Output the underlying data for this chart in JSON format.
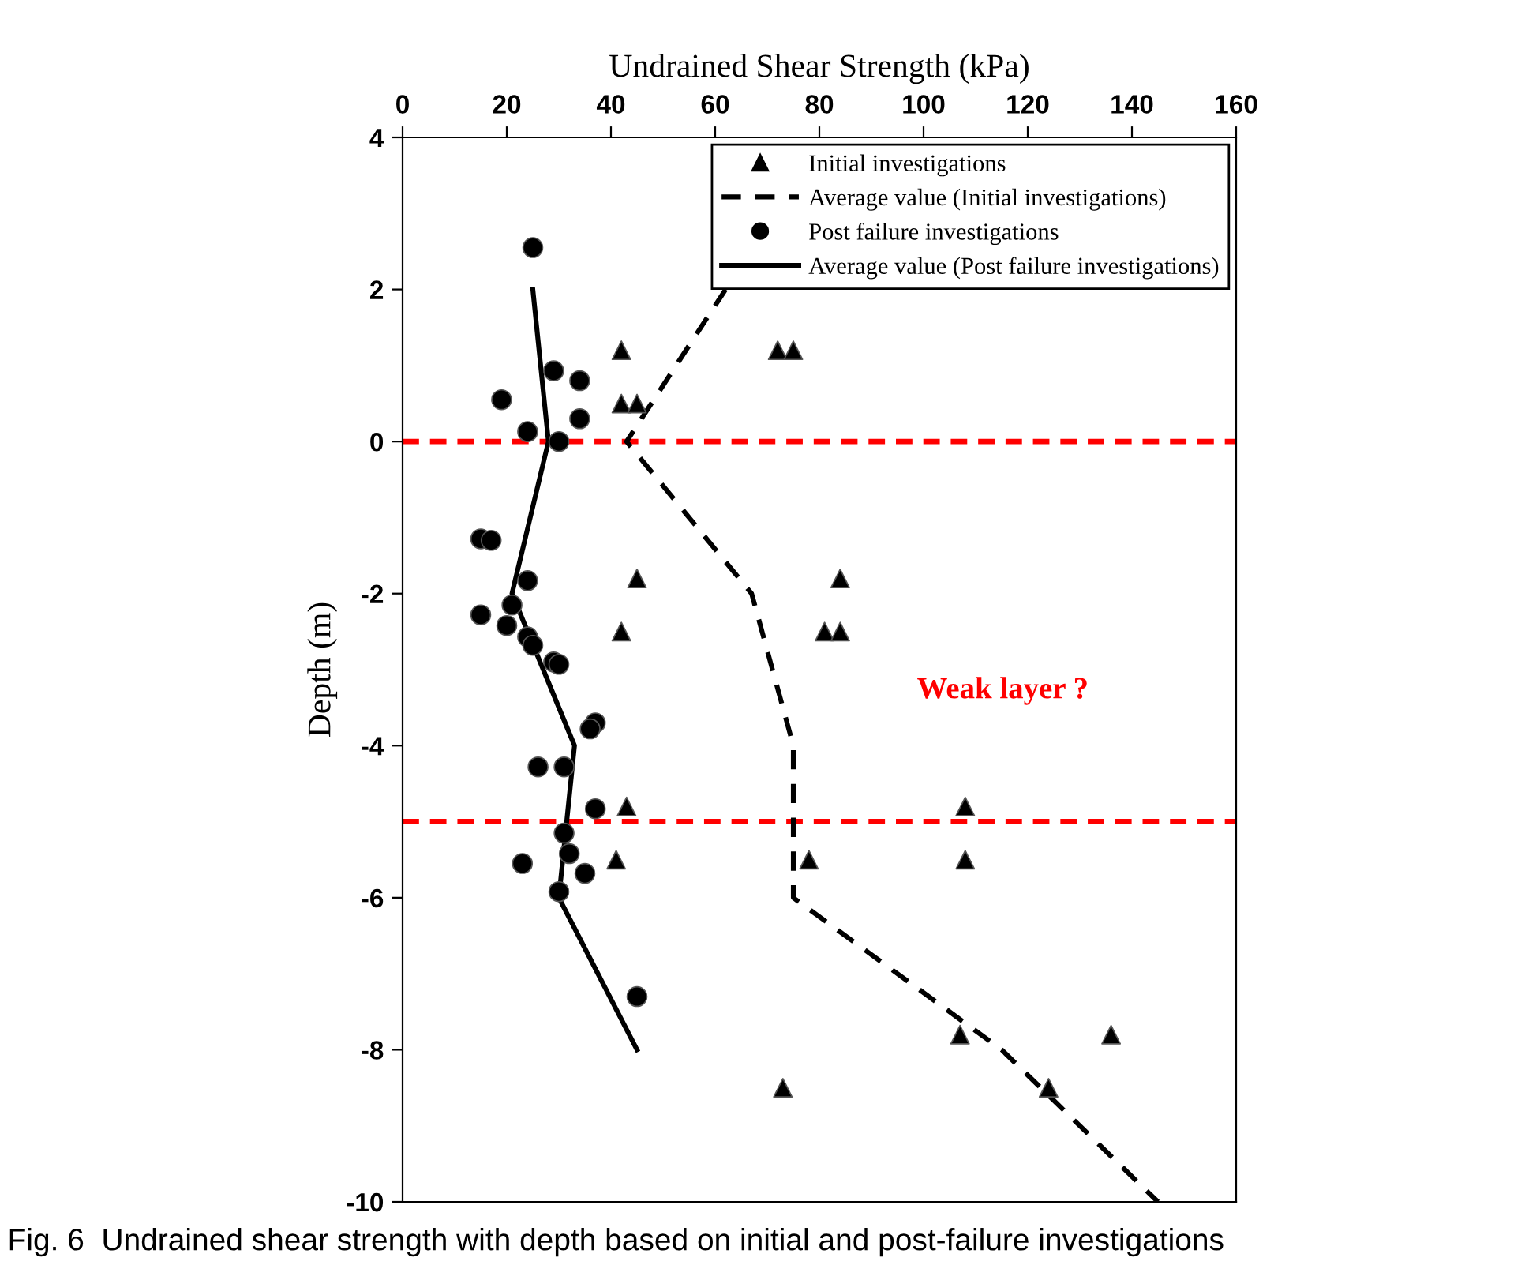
{
  "chart_data": {
    "type": "scatter",
    "xlabel": "Undrained Shear Strength (kPa)",
    "ylabel": "Depth (m)",
    "xlim": [
      0,
      160
    ],
    "xticks": [
      0,
      20,
      40,
      60,
      80,
      100,
      120,
      140,
      160
    ],
    "ylim": [
      -10,
      4
    ],
    "yticks": [
      -10,
      -8,
      -6,
      -4,
      -2,
      0,
      2,
      4
    ],
    "grid": false,
    "legend": "top right",
    "series": [
      {
        "name": "Initial investigations",
        "marker": "triangle",
        "color": "#000000",
        "x": [
          42,
          72,
          75,
          42,
          45,
          45,
          84,
          42,
          81,
          84,
          43,
          108,
          41,
          78,
          108,
          107,
          136,
          73,
          124
        ],
        "values": [
          1.2,
          1.2,
          1.2,
          0.5,
          0.5,
          -1.8,
          -1.8,
          -2.5,
          -2.5,
          -2.5,
          -4.8,
          -4.8,
          -5.5,
          -5.5,
          -5.5,
          -7.8,
          -7.8,
          -8.5,
          -8.5
        ]
      },
      {
        "name": "Average value (Initial investigations)",
        "type": "line",
        "line_style": "dashed",
        "marker": "none",
        "color": "#000000",
        "x": [
          62,
          43,
          67,
          75,
          75,
          115,
          145
        ],
        "values": [
          2,
          0,
          -2,
          -4,
          -6,
          -8,
          -10
        ]
      },
      {
        "name": "Post failure investigations",
        "marker": "circle",
        "color": "#000000",
        "x": [
          25,
          29,
          34,
          19,
          34,
          24,
          30,
          15,
          17,
          24,
          21,
          15,
          20,
          24,
          25,
          29,
          30,
          37,
          36,
          26,
          31,
          37,
          31,
          32,
          23,
          35,
          30,
          45
        ],
        "values": [
          2.55,
          0.93,
          0.8,
          0.55,
          0.3,
          0.13,
          0.0,
          -1.28,
          -1.3,
          -1.83,
          -2.15,
          -2.28,
          -2.42,
          -2.57,
          -2.68,
          -2.9,
          -2.93,
          -3.7,
          -3.78,
          -4.28,
          -4.28,
          -4.83,
          -5.15,
          -5.42,
          -5.55,
          -5.68,
          -5.92,
          -7.3
        ]
      },
      {
        "name": "Average value (Post failure investigations)",
        "type": "line",
        "line_style": "solid",
        "marker": "none",
        "color": "#000000",
        "x": [
          25,
          28,
          21,
          33,
          30,
          45
        ],
        "values": [
          2,
          0,
          -2,
          -4,
          -6,
          -8
        ]
      }
    ],
    "ref_lines": [
      {
        "axis": "y",
        "value": 0,
        "color": "#ff0000",
        "line_style": "dashed"
      },
      {
        "axis": "y",
        "value": -5,
        "color": "#ff0000",
        "line_style": "dashed"
      }
    ],
    "annotations": [
      "Weak layer ?",
      "Fig. 6  Undrained shear strength with depth based on initial and post-failure investigations"
    ]
  }
}
